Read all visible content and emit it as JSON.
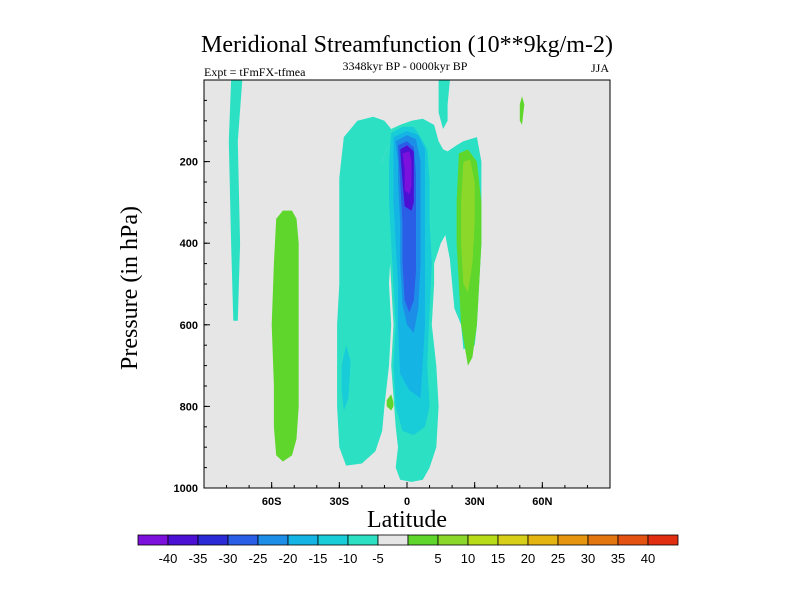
{
  "chart_data": {
    "type": "heatmap",
    "title": "Meridional Streamfunction (10**9kg/m-2)",
    "subtitle": "3348kyr BP - 0000kyr BP",
    "left_annotation": "Expt = tFmFX-tfmea",
    "right_annotation": "JJA",
    "xlabel": "Latitude",
    "ylabel": "Pressure (in hPa)",
    "xlim": [
      -90,
      90
    ],
    "ylim": [
      1000,
      0
    ],
    "x_ticks": [
      {
        "value": -60,
        "label": "60S"
      },
      {
        "value": -30,
        "label": "30S"
      },
      {
        "value": 0,
        "label": "0"
      },
      {
        "value": 30,
        "label": "30N"
      },
      {
        "value": 60,
        "label": "60N"
      }
    ],
    "y_ticks": [
      {
        "value": 200,
        "label": "200"
      },
      {
        "value": 400,
        "label": "400"
      },
      {
        "value": 600,
        "label": "600"
      },
      {
        "value": 800,
        "label": "800"
      },
      {
        "value": 1000,
        "label": "1000"
      }
    ],
    "background_color": "#e6e6e6",
    "colorbar": {
      "bins": [
        {
          "color": "#7c10dc"
        },
        {
          "color": "#4c10d4"
        },
        {
          "color": "#2a2ad6"
        },
        {
          "color": "#2a5ee6"
        },
        {
          "color": "#1c8ee8"
        },
        {
          "color": "#14b4e4"
        },
        {
          "color": "#18ccd8"
        },
        {
          "color": "#2ce0c4"
        },
        {
          "color": "#e6e6e6"
        },
        {
          "color": "#5ed62c"
        },
        {
          "color": "#8cd82a"
        },
        {
          "color": "#b8dc18"
        },
        {
          "color": "#d8d018"
        },
        {
          "color": "#e4b410"
        },
        {
          "color": "#e6960e"
        },
        {
          "color": "#e47610"
        },
        {
          "color": "#e45212"
        },
        {
          "color": "#e22e10"
        }
      ],
      "labels": [
        "-40",
        "-35",
        "-30",
        "-25",
        "-20",
        "-15",
        "-10",
        "-5",
        "5",
        "10",
        "15",
        "20",
        "25",
        "30",
        "35",
        "40"
      ]
    },
    "regions": [
      {
        "level": -10,
        "color": "#2ce0c4",
        "points": [
          [
            -78,
            0
          ],
          [
            -73,
            0
          ],
          [
            -75,
            150
          ],
          [
            -74,
            400
          ],
          [
            -75,
            590
          ],
          [
            -77,
            590
          ],
          [
            -78,
            400
          ],
          [
            -79,
            150
          ]
        ]
      },
      {
        "level": -10,
        "color": "#2ce0c4",
        "points": [
          [
            -30,
            240
          ],
          [
            -28,
            140
          ],
          [
            -22,
            100
          ],
          [
            -15,
            90
          ],
          [
            -10,
            100
          ],
          [
            -7,
            120
          ],
          [
            -6,
            150
          ],
          [
            -9,
            170
          ],
          [
            -11,
            200
          ],
          [
            -8,
            300
          ],
          [
            -7,
            400
          ],
          [
            -8,
            500
          ],
          [
            -7,
            600
          ],
          [
            -8,
            700
          ],
          [
            -10,
            800
          ],
          [
            -11,
            860
          ],
          [
            -14,
            910
          ],
          [
            -20,
            940
          ],
          [
            -27,
            945
          ],
          [
            -30,
            900
          ],
          [
            -31,
            800
          ],
          [
            -31,
            700
          ],
          [
            -31,
            600
          ],
          [
            -30,
            500
          ],
          [
            -30,
            400
          ],
          [
            -30,
            300
          ]
        ]
      },
      {
        "level": -10,
        "color": "#2ce0c4",
        "points": [
          [
            -7,
            120
          ],
          [
            -3,
            110
          ],
          [
            2,
            100
          ],
          [
            7,
            95
          ],
          [
            12,
            110
          ],
          [
            14,
            150
          ],
          [
            16,
            170
          ],
          [
            18,
            175
          ],
          [
            22,
            160
          ],
          [
            25,
            150
          ],
          [
            31,
            140
          ],
          [
            33,
            200
          ],
          [
            33,
            400
          ],
          [
            31,
            600
          ],
          [
            30,
            650
          ],
          [
            25,
            660
          ],
          [
            24,
            600
          ],
          [
            21,
            560
          ],
          [
            19,
            440
          ],
          [
            17,
            380
          ],
          [
            15,
            400
          ],
          [
            12,
            450
          ],
          [
            12,
            500
          ],
          [
            11,
            600
          ],
          [
            13,
            700
          ],
          [
            14,
            800
          ],
          [
            13,
            900
          ],
          [
            10,
            950
          ],
          [
            7,
            980
          ],
          [
            2,
            985
          ],
          [
            -3,
            980
          ],
          [
            -5,
            950
          ],
          [
            -4,
            900
          ],
          [
            -5,
            850
          ],
          [
            -7,
            700
          ],
          [
            -6,
            600
          ],
          [
            -7,
            500
          ],
          [
            -8,
            400
          ],
          [
            -9,
            300
          ],
          [
            -11,
            200
          ],
          [
            -9,
            170
          ],
          [
            -6,
            150
          ]
        ]
      },
      {
        "level": -10,
        "color": "#2ce0c4",
        "points": [
          [
            14,
            0
          ],
          [
            19,
            0
          ],
          [
            18,
            60
          ],
          [
            18,
            100
          ],
          [
            16,
            120
          ],
          [
            14,
            80
          ]
        ]
      },
      {
        "level": -10,
        "color": "#2ce0c4",
        "points": [
          [
            -15,
            338
          ],
          [
            -12,
            338
          ],
          [
            -12,
            350
          ],
          [
            -15,
            350
          ]
        ]
      },
      {
        "level": -15,
        "color": "#18ccd8",
        "points": [
          [
            -29,
            700
          ],
          [
            -27,
            650
          ],
          [
            -25,
            690
          ],
          [
            -26,
            780
          ],
          [
            -28,
            810
          ],
          [
            -29,
            760
          ]
        ]
      },
      {
        "level": -15,
        "color": "#18ccd8",
        "points": [
          [
            -7,
            130
          ],
          [
            -2,
            115
          ],
          [
            3,
            115
          ],
          [
            6,
            140
          ],
          [
            9,
            170
          ],
          [
            10,
            250
          ],
          [
            10,
            350
          ],
          [
            11,
            450
          ],
          [
            10,
            560
          ],
          [
            9,
            700
          ],
          [
            10,
            800
          ],
          [
            8,
            850
          ],
          [
            3,
            870
          ],
          [
            -2,
            860
          ],
          [
            -5,
            800
          ],
          [
            -6,
            700
          ],
          [
            -5,
            600
          ],
          [
            -6,
            500
          ],
          [
            -7,
            400
          ],
          [
            -8,
            300
          ],
          [
            -8,
            200
          ]
        ]
      },
      {
        "level": -20,
        "color": "#14b4e4",
        "points": [
          [
            -6,
            140
          ],
          [
            0,
            125
          ],
          [
            5,
            135
          ],
          [
            8,
            170
          ],
          [
            8,
            250
          ],
          [
            8,
            400
          ],
          [
            8,
            600
          ],
          [
            6,
            780
          ],
          [
            1,
            760
          ],
          [
            -3,
            720
          ],
          [
            -4,
            600
          ],
          [
            -4,
            500
          ],
          [
            -5,
            400
          ],
          [
            -6,
            300
          ],
          [
            -6,
            200
          ]
        ]
      },
      {
        "level": -25,
        "color": "#1c8ee8",
        "points": [
          [
            -5,
            150
          ],
          [
            0,
            135
          ],
          [
            4,
            145
          ],
          [
            6,
            200
          ],
          [
            6,
            300
          ],
          [
            6,
            450
          ],
          [
            5,
            560
          ],
          [
            3,
            620
          ],
          [
            0,
            600
          ],
          [
            -2,
            550
          ],
          [
            -3,
            450
          ],
          [
            -3,
            350
          ],
          [
            -4,
            250
          ],
          [
            -4,
            200
          ]
        ]
      },
      {
        "level": -30,
        "color": "#2a5ee6",
        "points": [
          [
            -4,
            160
          ],
          [
            0,
            150
          ],
          [
            3,
            165
          ],
          [
            4,
            230
          ],
          [
            4,
            350
          ],
          [
            4,
            470
          ],
          [
            3,
            540
          ],
          [
            1,
            570
          ],
          [
            -1,
            540
          ],
          [
            -2,
            450
          ],
          [
            -2,
            350
          ],
          [
            -3,
            250
          ]
        ]
      },
      {
        "level": -35,
        "color": "#4c10d4",
        "points": [
          [
            -3,
            170
          ],
          [
            0,
            160
          ],
          [
            3,
            175
          ],
          [
            3,
            240
          ],
          [
            3,
            300
          ],
          [
            2,
            320
          ],
          [
            -1,
            310
          ],
          [
            -2,
            250
          ]
        ]
      },
      {
        "level": -40,
        "color": "#7c10dc",
        "points": [
          [
            -2,
            180
          ],
          [
            1,
            175
          ],
          [
            2,
            200
          ],
          [
            2,
            260
          ],
          [
            1,
            280
          ],
          [
            -1,
            270
          ],
          [
            -1,
            220
          ]
        ]
      },
      {
        "level": 5,
        "color": "#5ed62c",
        "points": [
          [
            -58,
            340
          ],
          [
            -55,
            320
          ],
          [
            -51,
            320
          ],
          [
            -49,
            340
          ],
          [
            -48,
            400
          ],
          [
            -48,
            500
          ],
          [
            -48,
            600
          ],
          [
            -48,
            700
          ],
          [
            -48,
            800
          ],
          [
            -49,
            880
          ],
          [
            -51,
            920
          ],
          [
            -55,
            935
          ],
          [
            -58,
            920
          ],
          [
            -59,
            850
          ],
          [
            -59,
            750
          ],
          [
            -60,
            600
          ],
          [
            -59,
            450
          ]
        ]
      },
      {
        "level": 5,
        "color": "#5ed62c",
        "points": [
          [
            -7,
            770
          ],
          [
            -6,
            790
          ],
          [
            -6,
            800
          ],
          [
            -7,
            810
          ],
          [
            -9,
            800
          ],
          [
            -9,
            785
          ]
        ]
      },
      {
        "level": 5,
        "color": "#5ed62c",
        "points": [
          [
            23,
            180
          ],
          [
            27,
            170
          ],
          [
            31,
            200
          ],
          [
            33,
            300
          ],
          [
            33,
            400
          ],
          [
            32,
            500
          ],
          [
            31,
            600
          ],
          [
            29,
            680
          ],
          [
            27,
            700
          ],
          [
            24,
            600
          ],
          [
            23,
            500
          ],
          [
            22,
            400
          ],
          [
            22,
            300
          ]
        ]
      },
      {
        "level": 5,
        "color": "#5ed62c",
        "points": [
          [
            50,
            60
          ],
          [
            51,
            40
          ],
          [
            52,
            60
          ],
          [
            51,
            110
          ],
          [
            50,
            100
          ]
        ]
      },
      {
        "level": 10,
        "color": "#8cd82a",
        "points": [
          [
            25,
            200
          ],
          [
            28,
            195
          ],
          [
            30,
            250
          ],
          [
            30,
            350
          ],
          [
            29,
            450
          ],
          [
            27,
            520
          ],
          [
            25,
            500
          ],
          [
            24,
            400
          ],
          [
            24,
            300
          ]
        ]
      }
    ]
  }
}
